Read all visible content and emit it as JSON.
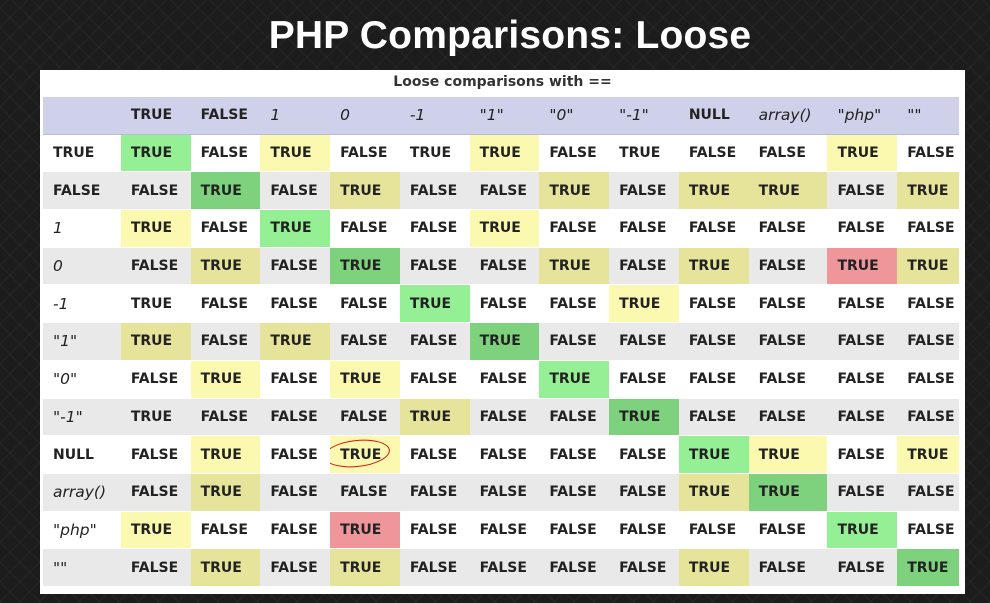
{
  "slide": {
    "title": "PHP Comparisons: Loose"
  },
  "table": {
    "caption": "Loose comparisons with ==",
    "headers": [
      "",
      "TRUE",
      "FALSE",
      "1",
      "0",
      "-1",
      "\"1\"",
      "\"0\"",
      "\"-1\"",
      "NULL",
      "array()",
      "\"php\"",
      "\"\""
    ],
    "rows": [
      {
        "label": "TRUE",
        "cells": [
          "TRUE",
          "FALSE",
          "TRUE",
          "FALSE",
          "TRUE",
          "TRUE",
          "FALSE",
          "TRUE",
          "FALSE",
          "FALSE",
          "TRUE",
          "FALSE"
        ]
      },
      {
        "label": "FALSE",
        "cells": [
          "FALSE",
          "TRUE",
          "FALSE",
          "TRUE",
          "FALSE",
          "FALSE",
          "TRUE",
          "FALSE",
          "TRUE",
          "TRUE",
          "FALSE",
          "TRUE"
        ]
      },
      {
        "label": "1",
        "cells": [
          "TRUE",
          "FALSE",
          "TRUE",
          "FALSE",
          "FALSE",
          "TRUE",
          "FALSE",
          "FALSE",
          "FALSE",
          "FALSE",
          "FALSE",
          "FALSE"
        ]
      },
      {
        "label": "0",
        "cells": [
          "FALSE",
          "TRUE",
          "FALSE",
          "TRUE",
          "FALSE",
          "FALSE",
          "TRUE",
          "FALSE",
          "TRUE",
          "FALSE",
          "TRUE",
          "TRUE"
        ]
      },
      {
        "label": "-1",
        "cells": [
          "TRUE",
          "FALSE",
          "FALSE",
          "FALSE",
          "TRUE",
          "FALSE",
          "FALSE",
          "TRUE",
          "FALSE",
          "FALSE",
          "FALSE",
          "FALSE"
        ]
      },
      {
        "label": "\"1\"",
        "cells": [
          "TRUE",
          "FALSE",
          "TRUE",
          "FALSE",
          "FALSE",
          "TRUE",
          "FALSE",
          "FALSE",
          "FALSE",
          "FALSE",
          "FALSE",
          "FALSE"
        ]
      },
      {
        "label": "\"0\"",
        "cells": [
          "FALSE",
          "TRUE",
          "FALSE",
          "TRUE",
          "FALSE",
          "FALSE",
          "TRUE",
          "FALSE",
          "FALSE",
          "FALSE",
          "FALSE",
          "FALSE"
        ]
      },
      {
        "label": "\"-1\"",
        "cells": [
          "TRUE",
          "FALSE",
          "FALSE",
          "FALSE",
          "TRUE",
          "FALSE",
          "FALSE",
          "TRUE",
          "FALSE",
          "FALSE",
          "FALSE",
          "FALSE"
        ]
      },
      {
        "label": "NULL",
        "cells": [
          "FALSE",
          "TRUE",
          "FALSE",
          "TRUE",
          "FALSE",
          "FALSE",
          "FALSE",
          "FALSE",
          "TRUE",
          "TRUE",
          "FALSE",
          "TRUE"
        ]
      },
      {
        "label": "array()",
        "cells": [
          "FALSE",
          "TRUE",
          "FALSE",
          "FALSE",
          "FALSE",
          "FALSE",
          "FALSE",
          "FALSE",
          "TRUE",
          "TRUE",
          "FALSE",
          "FALSE"
        ]
      },
      {
        "label": "\"php\"",
        "cells": [
          "TRUE",
          "FALSE",
          "FALSE",
          "TRUE",
          "FALSE",
          "FALSE",
          "FALSE",
          "FALSE",
          "FALSE",
          "FALSE",
          "TRUE",
          "FALSE"
        ]
      },
      {
        "label": "\"\"",
        "cells": [
          "FALSE",
          "TRUE",
          "FALSE",
          "TRUE",
          "FALSE",
          "FALSE",
          "FALSE",
          "FALSE",
          "TRUE",
          "FALSE",
          "FALSE",
          "TRUE"
        ]
      }
    ],
    "highlights": {
      "0": [
        "g",
        "",
        "y",
        "",
        "",
        "y",
        "",
        "",
        "",
        "",
        "y",
        ""
      ],
      "1": [
        "",
        "g",
        "",
        "y",
        "",
        "",
        "y",
        "",
        "y",
        "y",
        "",
        "y"
      ],
      "2": [
        "y",
        "",
        "g",
        "",
        "",
        "y",
        "",
        "",
        "",
        "",
        "",
        ""
      ],
      "3": [
        "",
        "y",
        "",
        "g",
        "",
        "",
        "y",
        "",
        "y",
        "",
        "r",
        "y"
      ],
      "4": [
        "",
        "",
        "",
        "",
        "g",
        "",
        "",
        "y",
        "",
        "",
        "",
        ""
      ],
      "5": [
        "y",
        "",
        "y",
        "",
        "",
        "g",
        "",
        "",
        "",
        "",
        "",
        ""
      ],
      "6": [
        "",
        "y",
        "",
        "y",
        "",
        "",
        "g",
        "",
        "",
        "",
        "",
        ""
      ],
      "7": [
        "",
        "",
        "",
        "",
        "y",
        "",
        "",
        "g",
        "",
        "",
        "",
        ""
      ],
      "8": [
        "",
        "y",
        "",
        "y",
        "",
        "",
        "",
        "",
        "g",
        "y",
        "",
        "y"
      ],
      "9": [
        "",
        "y",
        "",
        "",
        "",
        "",
        "",
        "",
        "y",
        "g",
        "",
        ""
      ],
      "10": [
        "y",
        "",
        "",
        "r",
        "",
        "",
        "",
        "",
        "",
        "",
        "g",
        ""
      ],
      "11": [
        "",
        "y",
        "",
        "y",
        "",
        "",
        "",
        "",
        "y",
        "",
        "",
        "g"
      ]
    },
    "italic_labels": [
      "1",
      "0",
      "-1",
      "\"1\"",
      "\"0\"",
      "\"-1\"",
      "array()",
      "\"php\"",
      "\"\""
    ],
    "circled_cell": {
      "row": 8,
      "col": 3
    }
  },
  "colors": {
    "strict_match_green": "#95ef95",
    "loose_true_yellow": "#fbf8b0",
    "unexpected_red": "#ee969a",
    "header_lavender": "#cfd1ea",
    "annotation_red": "#d91414"
  }
}
